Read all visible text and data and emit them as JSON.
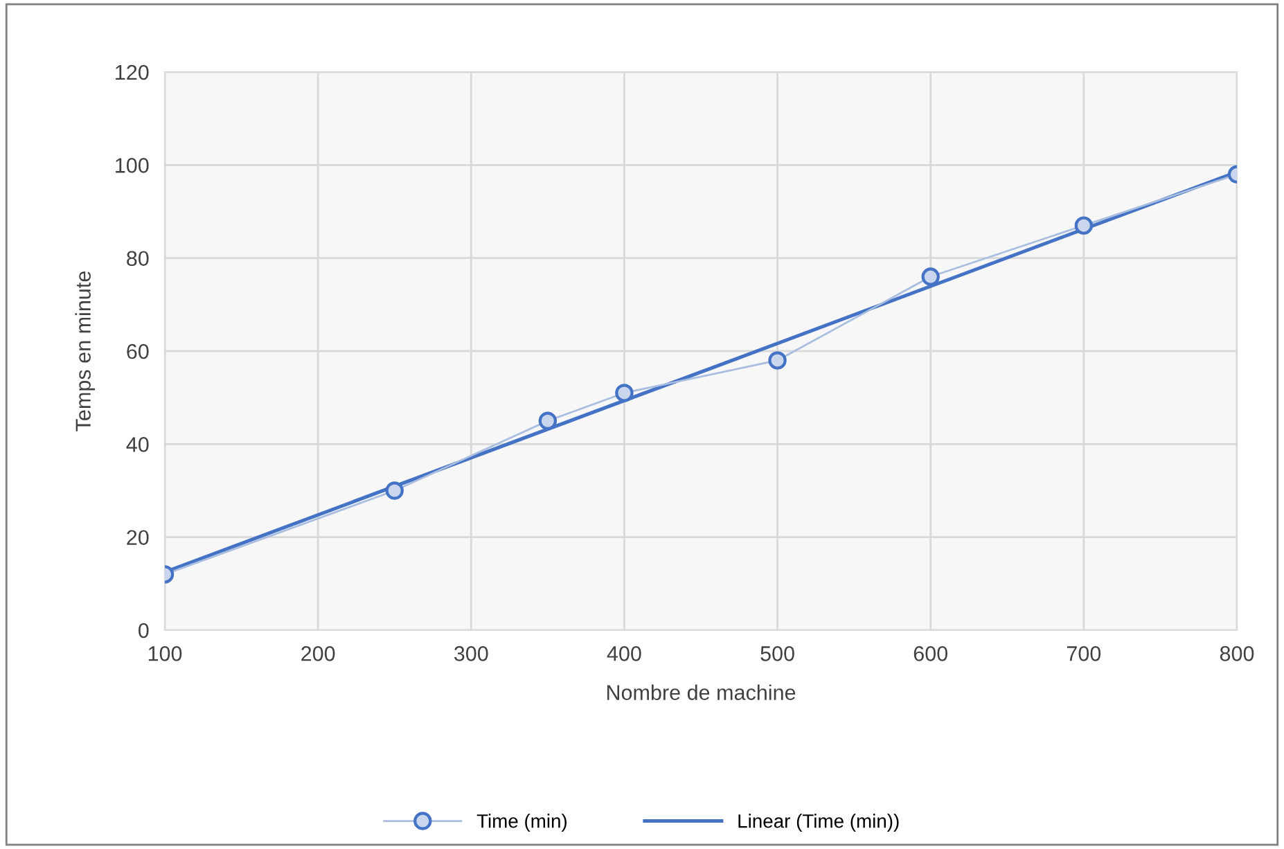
{
  "chart_data": {
    "type": "line",
    "xlabel": "Nombre de machine",
    "ylabel": "Temps en minute",
    "x": [
      100,
      250,
      350,
      400,
      500,
      600,
      700,
      800
    ],
    "series": [
      {
        "name": "Time (min)",
        "color": "#a9bde0",
        "values": [
          12,
          30,
          45,
          51,
          58,
          76,
          87,
          98
        ],
        "marker": "circle"
      },
      {
        "name": "Linear (Time (min))",
        "color": "#4472c4",
        "x": [
          100,
          800
        ],
        "values": [
          12.5,
          98.5
        ],
        "marker": "none"
      }
    ],
    "xlim": [
      100,
      800
    ],
    "xticks": [
      100,
      200,
      300,
      400,
      500,
      600,
      700,
      800
    ],
    "ylim": [
      0,
      120
    ],
    "yticks": [
      0,
      20,
      40,
      60,
      80,
      100,
      120
    ],
    "grid": true,
    "legend": "bottom",
    "line_style": "solid"
  }
}
